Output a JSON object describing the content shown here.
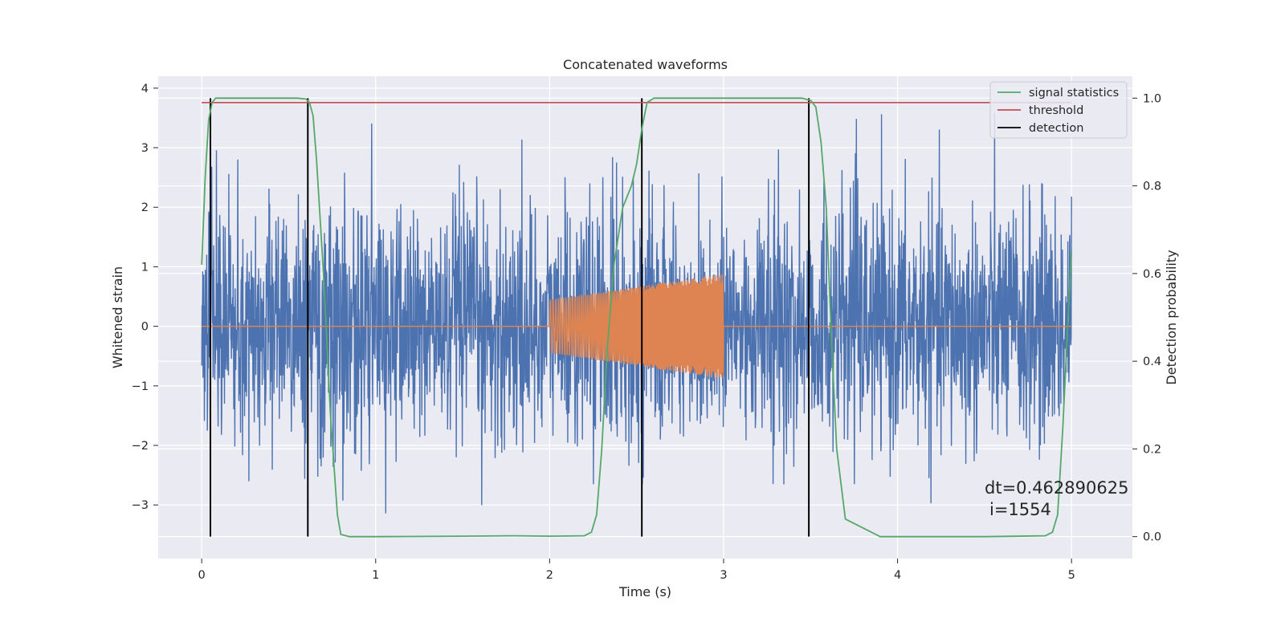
{
  "chart_data": {
    "type": "line",
    "title": "Concatenated waveforms",
    "xlabel": "Time (s)",
    "ylabel": "Whitened strain",
    "y2label": "Detection probability",
    "xlim": [
      -0.25,
      5.35
    ],
    "ylim": [
      -3.9,
      4.2
    ],
    "y2lim": [
      -0.05,
      1.05
    ],
    "xticks": [
      0,
      1,
      2,
      3,
      4,
      5
    ],
    "yticks": [
      -3,
      -2,
      -1,
      0,
      1,
      2,
      3,
      4
    ],
    "y2ticks": [
      0.0,
      0.2,
      0.4,
      0.6,
      0.8,
      1.0
    ],
    "xtick_labels": [
      "0",
      "1",
      "2",
      "3",
      "4",
      "5"
    ],
    "ytick_labels": [
      "−3",
      "−2",
      "−1",
      "0",
      "1",
      "2",
      "3",
      "4"
    ],
    "y2tick_labels": [
      "0.0",
      "0.2",
      "0.4",
      "0.6",
      "0.8",
      "1.0"
    ],
    "grid": true,
    "legend_position": "top-right",
    "legend": [
      "signal statistics",
      "threshold",
      "detection"
    ],
    "annotation": [
      "dt=0.462890625",
      "i=1554"
    ],
    "colors": {
      "strain": "#4c72b0",
      "injection": "#dd8452",
      "signal_statistics": "#55a868",
      "threshold": "#c44e52",
      "detection": "#000000",
      "axes_bg": "#eaeaf2",
      "grid": "#ffffff"
    },
    "series": [
      {
        "name": "signal statistics",
        "axis": "right",
        "x": [
          0.0,
          0.02,
          0.04,
          0.06,
          0.08,
          0.12,
          0.2,
          0.4,
          0.55,
          0.6,
          0.62,
          0.64,
          0.66,
          0.7,
          0.74,
          0.78,
          0.8,
          0.85,
          1.0,
          1.5,
          1.8,
          2.0,
          2.2,
          2.24,
          2.27,
          2.3,
          2.33,
          2.37,
          2.42,
          2.47,
          2.5,
          2.53,
          2.56,
          2.6,
          2.7,
          3.0,
          3.45,
          3.5,
          3.53,
          3.56,
          3.59,
          3.62,
          3.65,
          3.7,
          3.9,
          4.5,
          4.85,
          4.89,
          4.92,
          4.95,
          4.98,
          5.0
        ],
        "y": [
          0.62,
          0.82,
          0.95,
          0.99,
          1.0,
          1.0,
          1.0,
          1.0,
          1.0,
          0.998,
          0.99,
          0.96,
          0.86,
          0.6,
          0.28,
          0.05,
          0.005,
          0.0,
          0.0,
          0.001,
          0.002,
          0.001,
          0.002,
          0.01,
          0.05,
          0.2,
          0.42,
          0.62,
          0.75,
          0.8,
          0.85,
          0.93,
          0.99,
          1.0,
          1.0,
          1.0,
          1.0,
          0.995,
          0.98,
          0.9,
          0.75,
          0.45,
          0.2,
          0.04,
          0.0,
          0.0,
          0.002,
          0.01,
          0.05,
          0.25,
          0.5,
          0.65
        ]
      },
      {
        "name": "threshold",
        "axis": "right",
        "x": [
          0.0,
          5.0
        ],
        "y": [
          0.99,
          0.99
        ]
      },
      {
        "name": "detection",
        "axis": "right",
        "x": [
          0.05,
          0.61,
          2.53,
          3.49
        ],
        "y_range": [
          0.0,
          1.0
        ]
      },
      {
        "axis": "left",
        "x_range": [
          0.0,
          5.0
        ],
        "envelope_abs": 3.7,
        "description_values": "whitened noise strain, fluctuating roughly between -3.7 and 3.8"
      },
      {
        "axis": "left",
        "x_range": [
          2.0,
          3.0
        ],
        "amp_start": 0.45,
        "amp_end": 0.88
      }
    ]
  }
}
